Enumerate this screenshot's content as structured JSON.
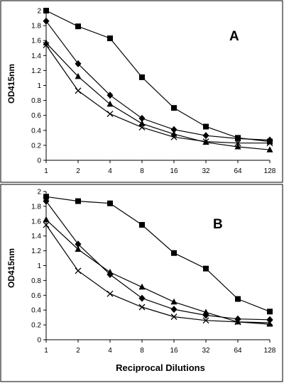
{
  "chart_data": [
    {
      "type": "line",
      "panel_label": "A",
      "xlabel": "",
      "ylabel": "OD415nm",
      "x_scale": "log2",
      "x": [
        1,
        2,
        4,
        8,
        16,
        32,
        64,
        128
      ],
      "x_tick_labels": [
        "1",
        "2",
        "4",
        "8",
        "16",
        "32",
        "64",
        "128"
      ],
      "ylim": [
        0,
        2
      ],
      "y_ticks": [
        0,
        0.2,
        0.4,
        0.6,
        0.8,
        1,
        1.2,
        1.4,
        1.6,
        1.8,
        2
      ],
      "y_tick_labels": [
        "0",
        "0.2",
        "0.4",
        "0.6",
        "0.8",
        "1",
        "1.2",
        "1.4",
        "1.6",
        "1.8",
        "2"
      ],
      "grid": false,
      "legend": "none",
      "series": [
        {
          "marker": "square",
          "values": [
            2.0,
            1.79,
            1.63,
            1.11,
            0.7,
            0.45,
            0.3,
            0.25
          ]
        },
        {
          "marker": "diamond",
          "values": [
            1.86,
            1.29,
            0.87,
            0.56,
            0.41,
            0.33,
            0.29,
            0.27
          ]
        },
        {
          "marker": "triangle",
          "values": [
            1.57,
            1.12,
            0.75,
            0.49,
            0.35,
            0.24,
            0.18,
            0.14
          ]
        },
        {
          "marker": "x",
          "values": [
            1.54,
            0.93,
            0.62,
            0.44,
            0.31,
            0.25,
            0.23,
            0.23
          ]
        }
      ]
    },
    {
      "type": "line",
      "panel_label": "B",
      "xlabel": "Reciprocal Dilutions",
      "ylabel": "OD415nm",
      "x_scale": "log2",
      "x": [
        1,
        2,
        4,
        8,
        16,
        32,
        64,
        128
      ],
      "x_tick_labels": [
        "1",
        "2",
        "4",
        "8",
        "16",
        "32",
        "64",
        "128"
      ],
      "ylim": [
        0,
        2
      ],
      "y_ticks": [
        0,
        0.2,
        0.4,
        0.6,
        0.8,
        1,
        1.2,
        1.4,
        1.6,
        1.8,
        2
      ],
      "y_tick_labels": [
        "0",
        "0.2",
        "0.4",
        "0.6",
        "0.8",
        "1",
        "1.2",
        "1.4",
        "1.6",
        "1.8",
        "2"
      ],
      "grid": false,
      "legend": "none",
      "series": [
        {
          "marker": "square",
          "values": [
            1.93,
            1.87,
            1.84,
            1.55,
            1.17,
            0.96,
            0.55,
            0.38
          ]
        },
        {
          "marker": "diamond",
          "values": [
            1.87,
            1.29,
            0.88,
            0.56,
            0.41,
            0.33,
            0.28,
            0.27
          ]
        },
        {
          "marker": "triangle",
          "values": [
            1.62,
            1.22,
            0.91,
            0.71,
            0.51,
            0.37,
            0.24,
            0.21
          ]
        },
        {
          "marker": "x",
          "values": [
            1.55,
            0.93,
            0.62,
            0.44,
            0.31,
            0.26,
            0.24,
            0.23
          ]
        }
      ]
    }
  ]
}
